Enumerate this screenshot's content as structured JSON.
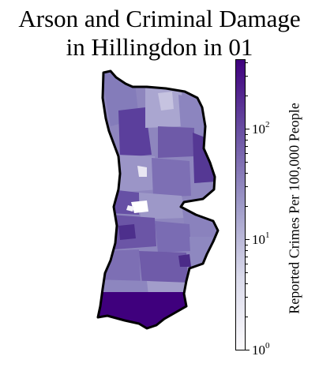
{
  "title": {
    "line1": "Arson and Criminal Damage",
    "line2": "in Hillingdon in 01"
  },
  "colorbar": {
    "label": "Reported Crimes Per 100,000 People",
    "scale": "log",
    "range": [
      1,
      400
    ],
    "ticks": [
      {
        "base": "10",
        "exp": "0",
        "value": 1
      },
      {
        "base": "10",
        "exp": "1",
        "value": 10
      },
      {
        "base": "10",
        "exp": "2",
        "value": 100
      }
    ],
    "colors": [
      "#fcfbfd",
      "#dadaeb",
      "#9e9ac8",
      "#6a51a3",
      "#3f007d"
    ]
  },
  "map": {
    "region": "Hillingdon",
    "boundary_color": "#000000",
    "fill_range": [
      "#fcfbfd",
      "#3f007d"
    ]
  }
}
